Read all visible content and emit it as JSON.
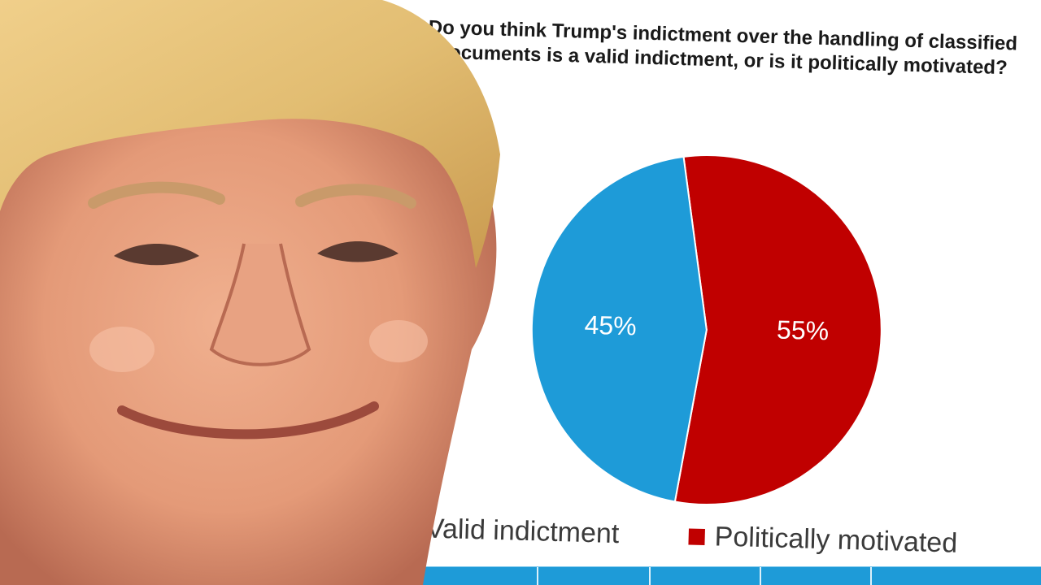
{
  "chart_data": {
    "type": "pie",
    "title": "Do you think Trump's indictment over the handling of classified documents is a valid indictment, or is it politically motivated?",
    "categories": [
      "Valid indictment",
      "Politically motivated"
    ],
    "values": [
      45,
      55
    ],
    "data_labels": [
      "45%",
      "55%"
    ],
    "colors": [
      "#1e9bd8",
      "#c00000"
    ],
    "legend_position": "bottom"
  },
  "photo": {
    "subject": "smiling man portrait cut-out",
    "colors": {
      "skin": "#e7a17f",
      "hair": "#e2bd72",
      "shadow": "#b86a52"
    }
  },
  "strip": {
    "color": "#1e9bd8"
  }
}
